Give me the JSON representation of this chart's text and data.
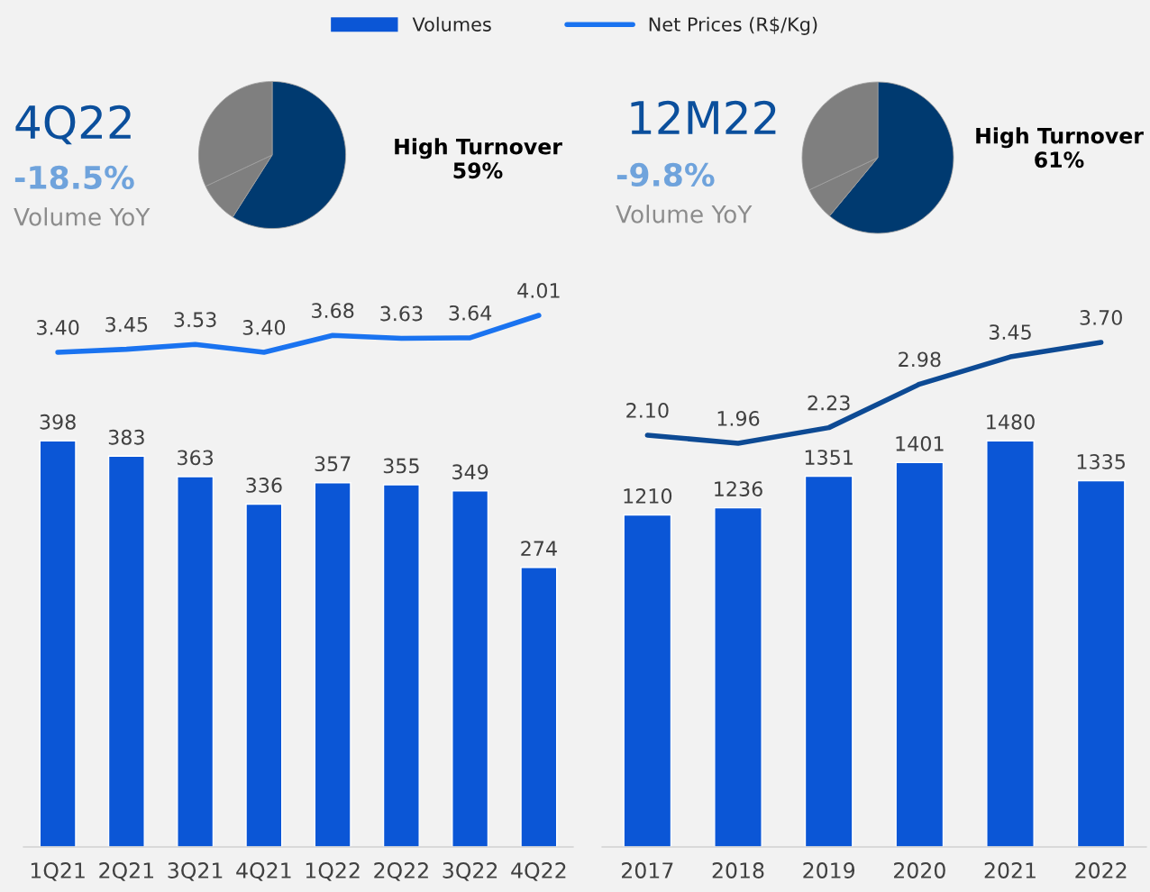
{
  "chart_data": [
    {
      "type": "bar",
      "categories": [
        "1Q21",
        "2Q21",
        "3Q21",
        "4Q21",
        "1Q22",
        "2Q22",
        "3Q22",
        "4Q22"
      ],
      "data_labels": true,
      "legend": "top",
      "series": [
        {
          "name": "Volumes",
          "color": "#0b56d6",
          "values": [
            398,
            383,
            363,
            336,
            357,
            355,
            349,
            274
          ]
        }
      ]
    },
    {
      "type": "line",
      "categories": [
        null,
        null,
        null,
        null,
        null,
        null,
        null,
        null
      ],
      "series": [
        {
          "name": "Net Prices (R$/Kg)",
          "color": "#1a73f0",
          "values": [
            3.4,
            3.45,
            3.53,
            3.4,
            3.68,
            3.63,
            3.64,
            4.01
          ],
          "value_labels": [
            "3.40",
            "3.45",
            "3.53",
            "3.40",
            "3.68",
            "3.63",
            "3.64",
            "4.01"
          ]
        }
      ]
    },
    {
      "type": "pie",
      "title": "4Q22",
      "annotations": [
        "-18.5%",
        "Volume YoY"
      ],
      "categories": [
        "High Turnover",
        null,
        null
      ],
      "values": [
        59,
        9,
        32
      ],
      "value_labels": [
        "59%",
        null,
        null
      ],
      "colors": [
        "#003a70",
        "#7f7f7f",
        "#7f7f7f"
      ]
    },
    {
      "type": "bar",
      "categories": [
        "2017",
        "2018",
        "2019",
        "2020",
        "2021",
        "2022"
      ],
      "data_labels": true,
      "series": [
        {
          "color": "#0b56d6",
          "values": [
            1210,
            1236,
            1351,
            1401,
            1480,
            1335
          ]
        }
      ]
    },
    {
      "type": "line",
      "categories": [
        null,
        null,
        null,
        null,
        null,
        null
      ],
      "series": [
        {
          "color": "#0d4a94",
          "values": [
            2.1,
            1.96,
            2.23,
            2.98,
            3.45,
            3.7
          ],
          "value_labels": [
            "2.10",
            "1.96",
            "2.23",
            "2.98",
            "3.45",
            "3.70"
          ]
        }
      ]
    },
    {
      "type": "pie",
      "title": "12M22",
      "annotations": [
        "-9.8%",
        "Volume YoY"
      ],
      "categories": [
        "High Turnover",
        null,
        null
      ],
      "values": [
        61,
        7,
        32
      ],
      "value_labels": [
        "61%",
        null,
        null
      ],
      "colors": [
        "#003a70",
        "#7f7f7f",
        "#7f7f7f"
      ]
    }
  ]
}
